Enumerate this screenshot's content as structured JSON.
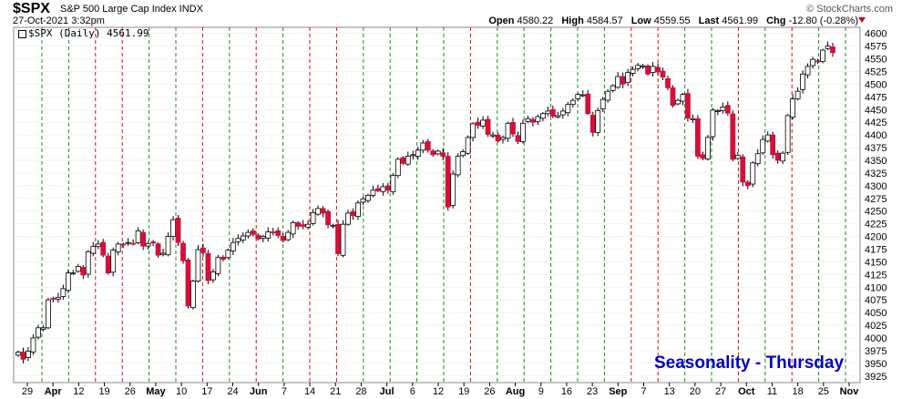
{
  "header": {
    "symbol": "$SPX",
    "description": "S&P 500 Large Cap Index INDX",
    "date": "27-Oct-2021 3:32pm",
    "brand": "© StockCharts.com",
    "open_label": "Open",
    "open": "4580.22",
    "high_label": "High",
    "high": "4584.57",
    "low_label": "Low",
    "low": "4559.55",
    "last_label": "Last",
    "last": "4561.99",
    "chg_label": "Chg",
    "chg": "-12.80 (-0.28%)"
  },
  "legend": {
    "text": "$SPX (Daily) 4561.99"
  },
  "watermark": "Seasonality - Thursday",
  "colors": {
    "up": "#ffffff",
    "down": "#d4103a",
    "green_line": "#1e8a1e",
    "red_line": "#cc1111",
    "grid": "#c8c8c8"
  },
  "chart_data": {
    "type": "candlestick",
    "title": "$SPX (Daily) 4561.99",
    "y_ticks": [
      4600,
      4575,
      4550,
      4525,
      4500,
      4475,
      4450,
      4425,
      4400,
      4375,
      4350,
      4325,
      4300,
      4275,
      4250,
      4225,
      4200,
      4175,
      4150,
      4125,
      4100,
      4075,
      4050,
      4025,
      4000,
      3975,
      3950,
      3925
    ],
    "ylim": [
      3912,
      4612
    ],
    "x_tick_labels": [
      "29",
      "Apr",
      "12",
      "19",
      "26",
      "May",
      "10",
      "17",
      "24",
      "Jun",
      "7",
      "14",
      "21",
      "28",
      "Jul",
      "6",
      "12",
      "19",
      "26",
      "Aug",
      "9",
      "16",
      "23",
      "Sep",
      "7",
      "13",
      "20",
      "27",
      "Oct",
      "11",
      "18",
      "25",
      "Nov"
    ],
    "thursday_markers": [
      "green",
      "green",
      "red",
      "red",
      "green",
      "green",
      "red",
      "green",
      "red",
      "green",
      "red",
      "red",
      "green",
      "green",
      "green",
      "green",
      "red",
      "green",
      "green",
      "green",
      "green",
      "green",
      "red",
      "red",
      "green",
      "green",
      "red",
      "green",
      "red",
      "green",
      "green"
    ],
    "closes": [
      3972,
      3958,
      3974,
      4000,
      4020,
      4020,
      4075,
      4078,
      4080,
      4097,
      4128,
      4128,
      4141,
      4124,
      4170,
      4180,
      4185,
      4163,
      4128,
      4173,
      4185,
      4183,
      4188,
      4186,
      4211,
      4181,
      4186,
      4187,
      4163,
      4167,
      4200,
      4233,
      4188,
      4152,
      4063,
      4112,
      4174,
      4168,
      4113,
      4130,
      4159,
      4155,
      4173,
      4188,
      4196,
      4201,
      4208,
      4204,
      4195,
      4200,
      4209,
      4208,
      4202,
      4192,
      4208,
      4227,
      4220,
      4220,
      4224,
      4247,
      4255,
      4246,
      4223,
      4222,
      4166,
      4224,
      4246,
      4241,
      4266,
      4274,
      4281,
      4291,
      4290,
      4298,
      4291,
      4320,
      4352,
      4344,
      4358,
      4361,
      4370,
      4384,
      4370,
      4361,
      4368,
      4358,
      4258,
      4323,
      4358,
      4367,
      4395,
      4422,
      4419,
      4429,
      4401,
      4400,
      4388,
      4395,
      4423,
      4402,
      4387,
      4423,
      4432,
      4425,
      4436,
      4442,
      4447,
      4437,
      4438,
      4447,
      4460,
      4468,
      4480,
      4479,
      4442,
      4405,
      4448,
      4470,
      4486,
      4497,
      4515,
      4500,
      4523,
      4529,
      4537,
      4536,
      4520,
      4535,
      4524,
      4514,
      4493,
      4458,
      4468,
      4480,
      4433,
      4432,
      4358,
      4354,
      4395,
      4449,
      4448,
      4455,
      4443,
      4352,
      4360,
      4307,
      4300,
      4345,
      4363,
      4391,
      4400,
      4361,
      4350,
      4364,
      4438,
      4471,
      4486,
      4520,
      4535,
      4549,
      4545,
      4567,
      4575,
      4562
    ]
  }
}
